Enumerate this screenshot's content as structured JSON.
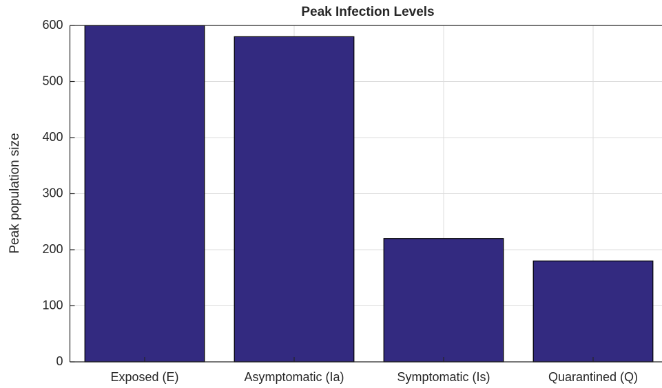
{
  "chart_data": {
    "type": "bar",
    "title": "Peak Infection Levels",
    "y_label": "Peak population size",
    "categories": [
      "Exposed (E)",
      "Asymptomatic (Ia)",
      "Symptomatic (Is)",
      "Quarantined (Q)"
    ],
    "values": [
      600,
      580,
      220,
      180
    ],
    "color": "#332a80",
    "ylim": [
      0,
      600
    ],
    "yticks": [
      0,
      100,
      200,
      300,
      400,
      500,
      600
    ],
    "grid": true
  }
}
